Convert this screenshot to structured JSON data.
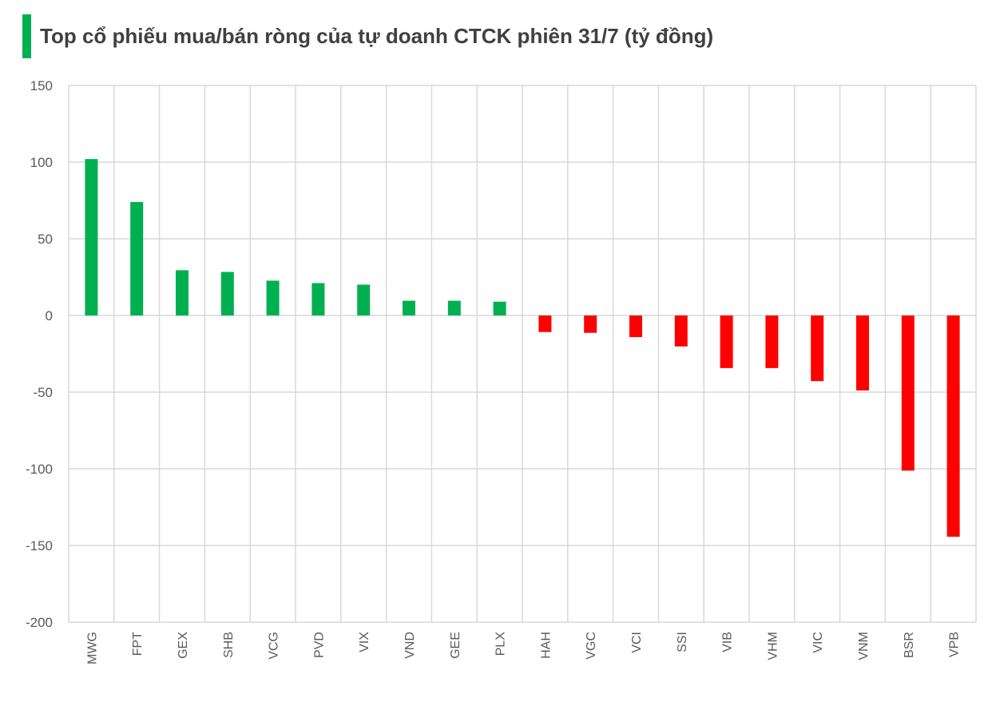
{
  "chart_data": {
    "type": "bar",
    "title": "Top cổ phiếu mua/bán ròng của tự doanh CTCK phiên 31/7 (tỷ đồng)",
    "categories": [
      "MWG",
      "FPT",
      "GEX",
      "SHB",
      "VCG",
      "PVD",
      "VIX",
      "VND",
      "GEE",
      "PLX",
      "HAH",
      "VGC",
      "VCI",
      "SSI",
      "VIB",
      "VHM",
      "VIC",
      "VNM",
      "BSR",
      "VPB"
    ],
    "values": [
      102,
      74,
      29.5,
      28.4,
      22.7,
      21.1,
      20.1,
      9.6,
      9.6,
      9.0,
      -10.8,
      -11.3,
      -14.1,
      -20.2,
      -34.3,
      -34.3,
      -42.8,
      -48.9,
      -101.2,
      -144.3
    ],
    "ylim": [
      -200,
      150
    ],
    "yticks": [
      150,
      100,
      50,
      0,
      -50,
      -100,
      -150,
      -200
    ],
    "grid": true,
    "colors": {
      "positive": "#00b050",
      "negative": "#ff0000",
      "grid": "#d9d9d9",
      "title_marker": "#00b050"
    }
  }
}
